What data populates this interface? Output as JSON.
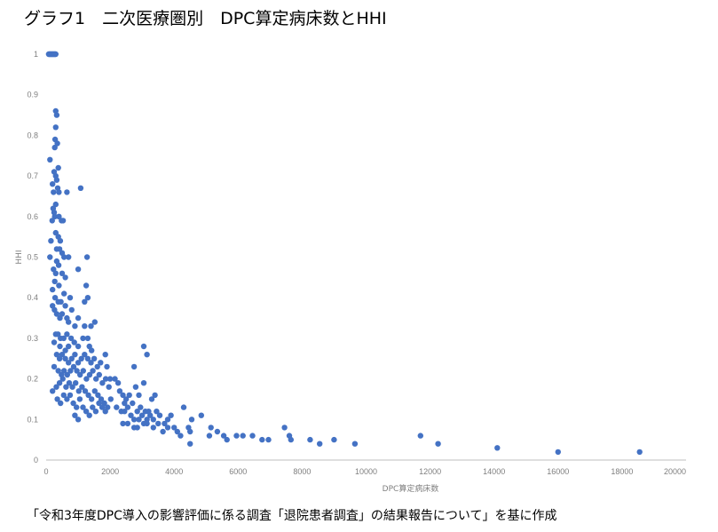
{
  "title": "グラフ1　二次医療圏別　DPC算定病床数とHHI",
  "source_note": "「令和3年度DPC導入の影響評価に係る調査「退院患者調査」の結果報告について」を基に作成",
  "chart_data": {
    "type": "scatter",
    "xlabel": "DPC算定病床数",
    "ylabel": "HHI",
    "xlim": [
      0,
      20000
    ],
    "ylim": [
      0,
      1
    ],
    "x_ticks": [
      0,
      2000,
      4000,
      6000,
      8000,
      10000,
      12000,
      14000,
      16000,
      18000,
      20000
    ],
    "y_ticks": [
      0,
      0.1,
      0.2,
      0.3,
      0.4,
      0.5,
      0.6,
      0.7,
      0.8,
      0.9,
      1
    ],
    "grid": false,
    "marker_color": "#4472c4",
    "points": [
      [
        80,
        1
      ],
      [
        100,
        1
      ],
      [
        120,
        1
      ],
      [
        140,
        1
      ],
      [
        160,
        1
      ],
      [
        180,
        1
      ],
      [
        200,
        1
      ],
      [
        220,
        1
      ],
      [
        240,
        1
      ],
      [
        260,
        1
      ],
      [
        280,
        1
      ],
      [
        300,
        1
      ],
      [
        300,
        0.86
      ],
      [
        330,
        0.85
      ],
      [
        300,
        0.82
      ],
      [
        280,
        0.79
      ],
      [
        350,
        0.78
      ],
      [
        270,
        0.77
      ],
      [
        120,
        0.74
      ],
      [
        380,
        0.72
      ],
      [
        250,
        0.71
      ],
      [
        300,
        0.7
      ],
      [
        330,
        0.69
      ],
      [
        200,
        0.68
      ],
      [
        360,
        0.67
      ],
      [
        230,
        0.66
      ],
      [
        400,
        0.66
      ],
      [
        650,
        0.66
      ],
      [
        1080,
        0.67
      ],
      [
        300,
        0.63
      ],
      [
        220,
        0.62
      ],
      [
        250,
        0.61
      ],
      [
        270,
        0.6
      ],
      [
        190,
        0.59
      ],
      [
        400,
        0.6
      ],
      [
        480,
        0.59
      ],
      [
        530,
        0.59
      ],
      [
        300,
        0.56
      ],
      [
        380,
        0.55
      ],
      [
        440,
        0.54
      ],
      [
        150,
        0.54
      ],
      [
        330,
        0.52
      ],
      [
        420,
        0.52
      ],
      [
        500,
        0.51
      ],
      [
        560,
        0.5
      ],
      [
        700,
        0.5
      ],
      [
        120,
        0.5
      ],
      [
        330,
        0.49
      ],
      [
        390,
        0.48
      ],
      [
        1280,
        0.5
      ],
      [
        230,
        0.47
      ],
      [
        300,
        0.46
      ],
      [
        500,
        0.46
      ],
      [
        600,
        0.45
      ],
      [
        1000,
        0.47
      ],
      [
        270,
        0.44
      ],
      [
        400,
        0.43
      ],
      [
        200,
        0.42
      ],
      [
        560,
        0.41
      ],
      [
        750,
        0.4
      ],
      [
        1250,
        0.43
      ],
      [
        280,
        0.4
      ],
      [
        380,
        0.39
      ],
      [
        460,
        0.39
      ],
      [
        600,
        0.38
      ],
      [
        800,
        0.37
      ],
      [
        1200,
        0.39
      ],
      [
        1300,
        0.4
      ],
      [
        200,
        0.38
      ],
      [
        260,
        0.37
      ],
      [
        330,
        0.36
      ],
      [
        430,
        0.35
      ],
      [
        500,
        0.36
      ],
      [
        650,
        0.35
      ],
      [
        700,
        0.34
      ],
      [
        900,
        0.33
      ],
      [
        1000,
        0.35
      ],
      [
        1400,
        0.33
      ],
      [
        1520,
        0.34
      ],
      [
        1300,
        0.3
      ],
      [
        1200,
        0.33
      ],
      [
        300,
        0.31
      ],
      [
        370,
        0.31
      ],
      [
        450,
        0.3
      ],
      [
        550,
        0.3
      ],
      [
        650,
        0.31
      ],
      [
        780,
        0.3
      ],
      [
        880,
        0.29
      ],
      [
        1000,
        0.28
      ],
      [
        1150,
        0.3
      ],
      [
        1350,
        0.28
      ],
      [
        1420,
        0.27
      ],
      [
        250,
        0.29
      ],
      [
        430,
        0.28
      ],
      [
        600,
        0.27
      ],
      [
        700,
        0.28
      ],
      [
        330,
        0.26
      ],
      [
        420,
        0.25
      ],
      [
        500,
        0.26
      ],
      [
        600,
        0.25
      ],
      [
        700,
        0.24
      ],
      [
        800,
        0.25
      ],
      [
        900,
        0.26
      ],
      [
        1000,
        0.24
      ],
      [
        1100,
        0.25
      ],
      [
        1200,
        0.26
      ],
      [
        1300,
        0.25
      ],
      [
        1400,
        0.24
      ],
      [
        1500,
        0.25
      ],
      [
        1600,
        0.23
      ],
      [
        1700,
        0.24
      ],
      [
        1850,
        0.26
      ],
      [
        1900,
        0.23
      ],
      [
        250,
        0.23
      ],
      [
        380,
        0.22
      ],
      [
        480,
        0.21
      ],
      [
        560,
        0.22
      ],
      [
        660,
        0.21
      ],
      [
        760,
        0.22
      ],
      [
        860,
        0.23
      ],
      [
        960,
        0.22
      ],
      [
        1060,
        0.21
      ],
      [
        1160,
        0.22
      ],
      [
        1260,
        0.2
      ],
      [
        1360,
        0.21
      ],
      [
        1460,
        0.22
      ],
      [
        1560,
        0.2
      ],
      [
        1660,
        0.21
      ],
      [
        1760,
        0.19
      ],
      [
        1860,
        0.2
      ],
      [
        1960,
        0.18
      ],
      [
        2000,
        0.2
      ],
      [
        320,
        0.18
      ],
      [
        420,
        0.19
      ],
      [
        520,
        0.2
      ],
      [
        620,
        0.18
      ],
      [
        720,
        0.19
      ],
      [
        820,
        0.18
      ],
      [
        920,
        0.19
      ],
      [
        1020,
        0.17
      ],
      [
        1120,
        0.18
      ],
      [
        1220,
        0.17
      ],
      [
        1320,
        0.16
      ],
      [
        1420,
        0.15
      ],
      [
        1520,
        0.17
      ],
      [
        1620,
        0.16
      ],
      [
        1720,
        0.15
      ],
      [
        1820,
        0.14
      ],
      [
        1920,
        0.13
      ],
      [
        2020,
        0.15
      ],
      [
        200,
        0.17
      ],
      [
        350,
        0.15
      ],
      [
        450,
        0.14
      ],
      [
        550,
        0.16
      ],
      [
        650,
        0.15
      ],
      [
        750,
        0.16
      ],
      [
        850,
        0.14
      ],
      [
        950,
        0.13
      ],
      [
        1050,
        0.15
      ],
      [
        1150,
        0.13
      ],
      [
        1250,
        0.12
      ],
      [
        1350,
        0.11
      ],
      [
        1450,
        0.13
      ],
      [
        1550,
        0.12
      ],
      [
        1650,
        0.14
      ],
      [
        1750,
        0.13
      ],
      [
        1850,
        0.12
      ],
      [
        900,
        0.11
      ],
      [
        1000,
        0.1
      ],
      [
        2150,
        0.2
      ],
      [
        2250,
        0.19
      ],
      [
        2300,
        0.17
      ],
      [
        2400,
        0.16
      ],
      [
        2450,
        0.14
      ],
      [
        2500,
        0.15
      ],
      [
        2600,
        0.16
      ],
      [
        2700,
        0.14
      ],
      [
        2750,
        0.23
      ],
      [
        2800,
        0.18
      ],
      [
        2900,
        0.16
      ],
      [
        2950,
        0.13
      ],
      [
        3050,
        0.19
      ],
      [
        3050,
        0.28
      ],
      [
        3150,
        0.26
      ],
      [
        3200,
        0.12
      ],
      [
        3300,
        0.15
      ],
      [
        3400,
        0.16
      ],
      [
        2200,
        0.13
      ],
      [
        2350,
        0.12
      ],
      [
        2450,
        0.12
      ],
      [
        2550,
        0.13
      ],
      [
        2650,
        0.11
      ],
      [
        2750,
        0.1
      ],
      [
        2850,
        0.12
      ],
      [
        2900,
        0.1
      ],
      [
        3000,
        0.11
      ],
      [
        3100,
        0.12
      ],
      [
        3150,
        0.09
      ],
      [
        3250,
        0.11
      ],
      [
        3350,
        0.1
      ],
      [
        3450,
        0.12
      ],
      [
        3550,
        0.11
      ],
      [
        3650,
        0.07
      ],
      [
        3700,
        0.09
      ],
      [
        3800,
        0.1
      ],
      [
        3900,
        0.11
      ],
      [
        2400,
        0.09
      ],
      [
        2550,
        0.09
      ],
      [
        2750,
        0.08
      ],
      [
        2850,
        0.08
      ],
      [
        3050,
        0.09
      ],
      [
        3150,
        0.1
      ],
      [
        3350,
        0.08
      ],
      [
        3500,
        0.09
      ],
      [
        3800,
        0.08
      ],
      [
        4000,
        0.08
      ],
      [
        4100,
        0.07
      ],
      [
        4200,
        0.06
      ],
      [
        4300,
        0.13
      ],
      [
        4450,
        0.08
      ],
      [
        4500,
        0.07
      ],
      [
        4550,
        0.1
      ],
      [
        4850,
        0.11
      ],
      [
        5100,
        0.06
      ],
      [
        5150,
        0.08
      ],
      [
        5350,
        0.07
      ],
      [
        5550,
        0.06
      ],
      [
        5650,
        0.05
      ],
      [
        5950,
        0.06
      ],
      [
        6150,
        0.06
      ],
      [
        6450,
        0.06
      ],
      [
        6750,
        0.05
      ],
      [
        6950,
        0.05
      ],
      [
        7450,
        0.08
      ],
      [
        7600,
        0.06
      ],
      [
        7650,
        0.05
      ],
      [
        8250,
        0.05
      ],
      [
        8550,
        0.04
      ],
      [
        9000,
        0.05
      ],
      [
        9650,
        0.04
      ],
      [
        4500,
        0.04
      ],
      [
        11700,
        0.06
      ],
      [
        12250,
        0.04
      ],
      [
        14100,
        0.03
      ],
      [
        16000,
        0.02
      ],
      [
        18550,
        0.02
      ]
    ]
  }
}
